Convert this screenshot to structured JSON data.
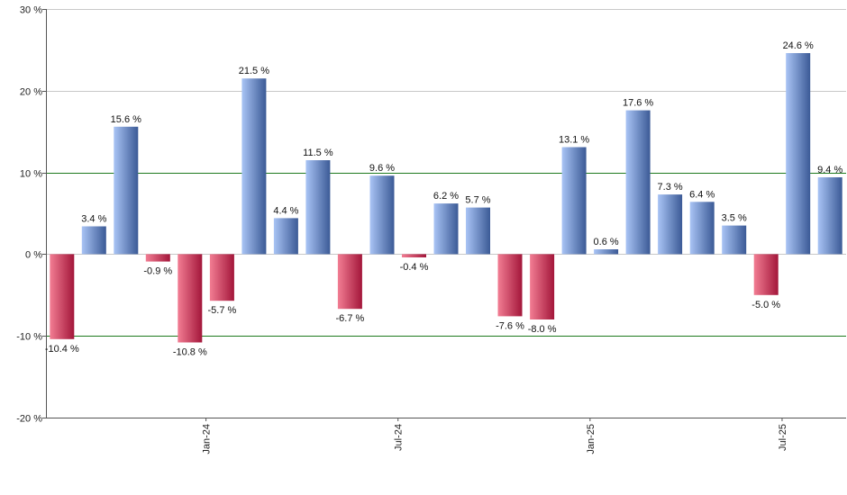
{
  "chart_data": {
    "type": "bar",
    "title": "",
    "xlabel": "",
    "ylabel": "",
    "ylim": [
      -20,
      30
    ],
    "y_ticks": [
      -20,
      -10,
      0,
      10,
      20,
      30
    ],
    "y_tick_labels": [
      "-20 %",
      "-10 %",
      "0 %",
      "10 %",
      "20 %",
      "30 %"
    ],
    "reference_lines": [
      10,
      -10
    ],
    "grid": "horizontal",
    "legend": "none",
    "values": [
      -10.4,
      3.4,
      15.6,
      -0.9,
      -10.8,
      -5.7,
      21.5,
      4.4,
      11.5,
      -6.7,
      9.6,
      -0.4,
      6.2,
      5.7,
      -7.6,
      -8.0,
      13.1,
      0.6,
      17.6,
      7.3,
      6.4,
      3.5,
      -5.0,
      24.6,
      9.4
    ],
    "data_labels": [
      "-10.4 %",
      "3.4 %",
      "15.6 %",
      "-0.9 %",
      "-10.8 %",
      "-5.7 %",
      "21.5 %",
      "4.4 %",
      "11.5 %",
      "-6.7 %",
      "9.6 %",
      "-0.4 %",
      "6.2 %",
      "5.7 %",
      "-7.6 %",
      "-8.0 %",
      "13.1 %",
      "0.6 %",
      "17.6 %",
      "7.3 %",
      "6.4 %",
      "3.5 %",
      "-5.0 %",
      "24.6 %",
      "9.4 %"
    ],
    "x_ticks": [
      {
        "index": 4.5,
        "label": "Jan-24"
      },
      {
        "index": 10.5,
        "label": "Jul-24"
      },
      {
        "index": 16.5,
        "label": "Jan-25"
      },
      {
        "index": 22.5,
        "label": "Jul-25"
      }
    ],
    "colors": {
      "positive_light": "#a9c4f5",
      "positive_dark": "#3b5a96",
      "negative_light": "#f27d93",
      "negative_dark": "#a3163a",
      "reference_line": "#1e7a1e",
      "grid": "#c8c8c8",
      "axis": "#555555"
    }
  }
}
